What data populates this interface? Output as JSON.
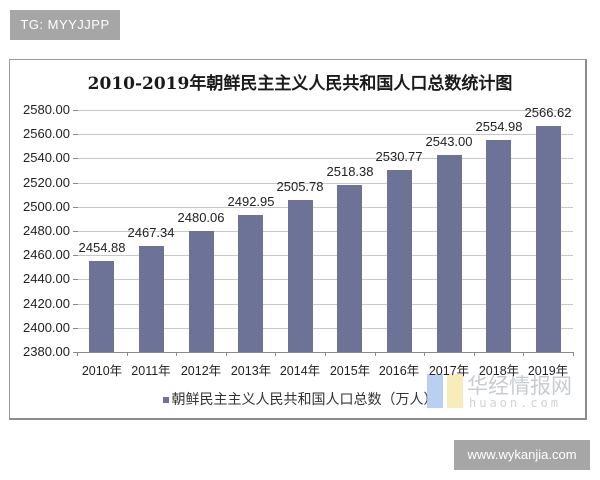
{
  "watermark_top": "TG: MYYJJPP",
  "watermark_bottom": "www.wykanjia.com",
  "source_watermark": {
    "cn": "华经情报网",
    "en": "huaon.com"
  },
  "colors": {
    "bar": "#6c7397",
    "grid": "#c8c8c8",
    "frame": "#9a9a9a"
  },
  "chart_data": {
    "type": "bar",
    "title": "2010-2019年朝鲜民主主义人民共和国人口总数统计图",
    "xlabel": "",
    "ylabel": "",
    "categories": [
      "2010年",
      "2011年",
      "2012年",
      "2013年",
      "2014年",
      "2015年",
      "2016年",
      "2017年",
      "2018年",
      "2019年"
    ],
    "series": [
      {
        "name": "朝鲜民主主义人民共和国人口总数（万人）",
        "values": [
          2454.88,
          2467.34,
          2480.06,
          2492.95,
          2505.78,
          2518.38,
          2530.77,
          2543.0,
          2554.98,
          2566.62
        ]
      }
    ],
    "value_labels": [
      "2454.88",
      "2467.34",
      "2480.06",
      "2492.95",
      "2505.78",
      "2518.38",
      "2530.77",
      "2543.00",
      "2554.98",
      "2566.62"
    ],
    "yticks": [
      "2580.00",
      "2560.00",
      "2540.00",
      "2520.00",
      "2500.00",
      "2480.00",
      "2460.00",
      "2440.00",
      "2420.00",
      "2400.00",
      "2380.00"
    ],
    "ylim": [
      2380,
      2580
    ],
    "grid": true,
    "legend_position": "bottom",
    "legend": [
      "朝鲜民主主义人民共和国人口总数（万人）"
    ]
  }
}
